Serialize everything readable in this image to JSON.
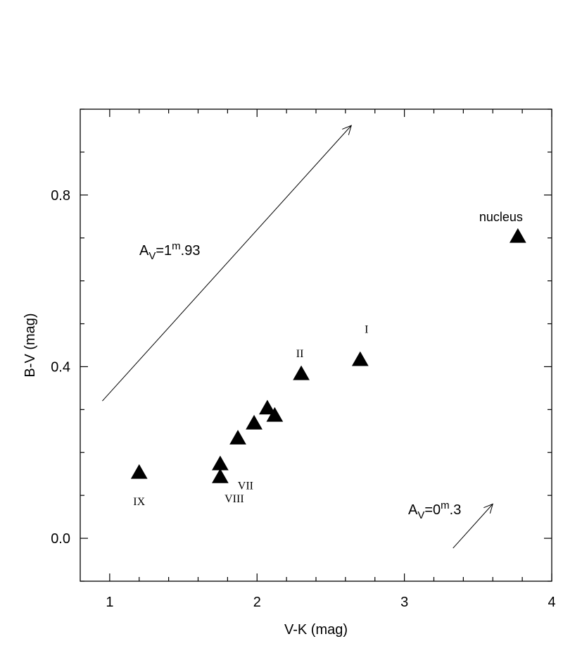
{
  "chart_data": {
    "type": "scatter",
    "xlabel": "V-K (mag)",
    "ylabel": "B-V (mag)",
    "xlim": [
      0.8,
      4.0
    ],
    "ylim": [
      -0.1,
      1.0
    ],
    "x_ticks": [
      1,
      2,
      3,
      4
    ],
    "x_tick_labels": [
      "1",
      "2",
      "3",
      "4"
    ],
    "y_ticks": [
      0.0,
      0.4,
      0.8
    ],
    "y_tick_labels": [
      "0.0",
      "0.4",
      "0.8"
    ],
    "grid": false,
    "marker": "filled-triangle",
    "marker_color": "#000000",
    "points": [
      {
        "x": 1.2,
        "y": 0.153,
        "label": "IX"
      },
      {
        "x": 1.75,
        "y": 0.173,
        "label": "VII"
      },
      {
        "x": 1.75,
        "y": 0.143,
        "label": "VIII"
      },
      {
        "x": 1.87,
        "y": 0.233,
        "label": ""
      },
      {
        "x": 1.98,
        "y": 0.268,
        "label": ""
      },
      {
        "x": 2.07,
        "y": 0.303,
        "label": ""
      },
      {
        "x": 2.12,
        "y": 0.286,
        "label": ""
      },
      {
        "x": 2.3,
        "y": 0.383,
        "label": "II"
      },
      {
        "x": 2.7,
        "y": 0.416,
        "label": "I"
      },
      {
        "x": 3.77,
        "y": 0.703,
        "label": "nucleus"
      }
    ],
    "arrows": [
      {
        "from": [
          0.95,
          0.32
        ],
        "to": [
          2.64,
          0.962
        ],
        "label_main": "A",
        "label_sub": "V",
        "label_tail": "=1",
        "label_sup": "m",
        "label_end": ".93"
      },
      {
        "from": [
          3.33,
          -0.023
        ],
        "to": [
          3.6,
          0.08
        ],
        "label_main": "A",
        "label_sub": "V",
        "label_tail": "=0",
        "label_sup": "m",
        "label_end": ".3"
      }
    ]
  }
}
